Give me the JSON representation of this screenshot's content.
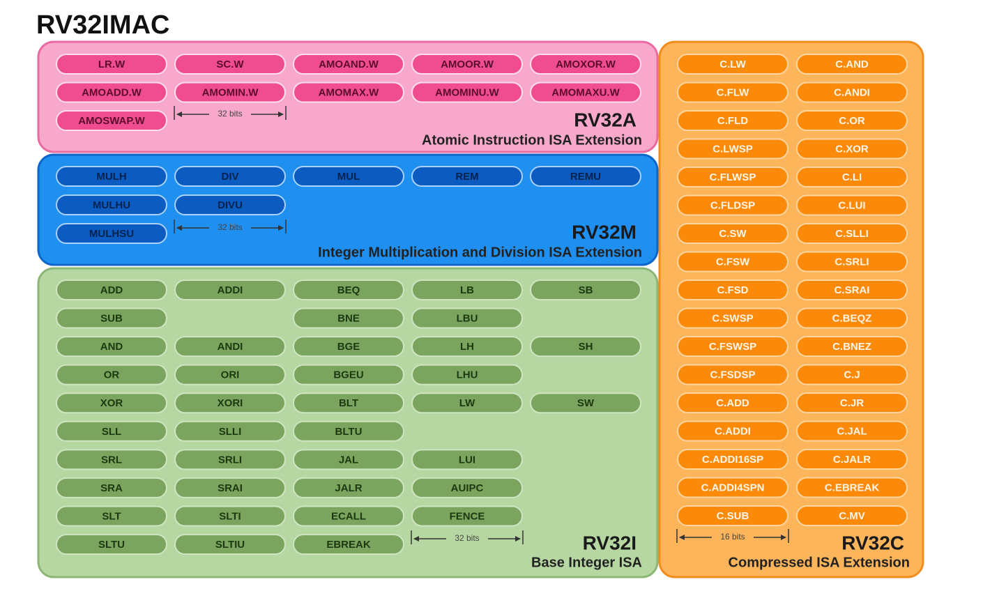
{
  "header": {
    "title": "RV32IMAC"
  },
  "panels": [
    {
      "name": "RV32A",
      "description": "Atomic Instruction ISA Extension",
      "width_label": "32 bits",
      "rows": [
        [
          "LR.W",
          "SC.W",
          "AMOAND.W",
          "AMOOR.W",
          "AMOXOR.W"
        ],
        [
          "AMOADD.W",
          "AMOMIN.W",
          "AMOMAX.W",
          "AMOMINU.W",
          "AMOMAXU.W"
        ],
        [
          "AMOSWAP.W"
        ]
      ]
    },
    {
      "name": "RV32M",
      "description": "Integer Multiplication and Division ISA Extension",
      "width_label": "32 bits",
      "rows": [
        [
          "MULH",
          "DIV",
          "MUL",
          "REM",
          "REMU"
        ],
        [
          "MULHU",
          "DIVU"
        ],
        [
          "MULHSU"
        ]
      ]
    },
    {
      "name": "RV32I",
      "description": "Base Integer ISA",
      "width_label": "32 bits",
      "rows": [
        [
          "ADD",
          "ADDI",
          "BEQ",
          "LB",
          "SB"
        ],
        [
          "SUB",
          null,
          "BNE",
          "LBU"
        ],
        [
          "AND",
          "ANDI",
          "BGE",
          "LH",
          "SH"
        ],
        [
          "OR",
          "ORI",
          "BGEU",
          "LHU"
        ],
        [
          "XOR",
          "XORI",
          "BLT",
          "LW",
          "SW"
        ],
        [
          "SLL",
          "SLLI",
          "BLTU"
        ],
        [
          "SRL",
          "SRLI",
          "JAL",
          "LUI"
        ],
        [
          "SRA",
          "SRAI",
          "JALR",
          "AUIPC"
        ],
        [
          "SLT",
          "SLTI",
          "ECALL",
          "FENCE"
        ],
        [
          "SLTU",
          "SLTIU",
          "EBREAK"
        ]
      ]
    },
    {
      "name": "RV32C",
      "description": "Compressed ISA Extension",
      "width_label": "16 bits",
      "rows": [
        [
          "C.LW",
          "C.AND"
        ],
        [
          "C.FLW",
          "C.ANDI"
        ],
        [
          "C.FLD",
          "C.OR"
        ],
        [
          "C.LWSP",
          "C.XOR"
        ],
        [
          "C.FLWSP",
          "C.LI"
        ],
        [
          "C.FLDSP",
          "C.LUI"
        ],
        [
          "C.SW",
          "C.SLLI"
        ],
        [
          "C.FSW",
          "C.SRLI"
        ],
        [
          "C.FSD",
          "C.SRAI"
        ],
        [
          "C.SWSP",
          "C.BEQZ"
        ],
        [
          "C.FSWSP",
          "C.BNEZ"
        ],
        [
          "C.FSDSP",
          "C.J"
        ],
        [
          "C.ADD",
          "C.JR"
        ],
        [
          "C.ADDI",
          "C.JAL"
        ],
        [
          "C.ADDI16SP",
          "C.JALR"
        ],
        [
          "C.ADDI4SPN",
          "C.EBREAK"
        ],
        [
          "C.SUB",
          "C.MV"
        ]
      ]
    }
  ]
}
